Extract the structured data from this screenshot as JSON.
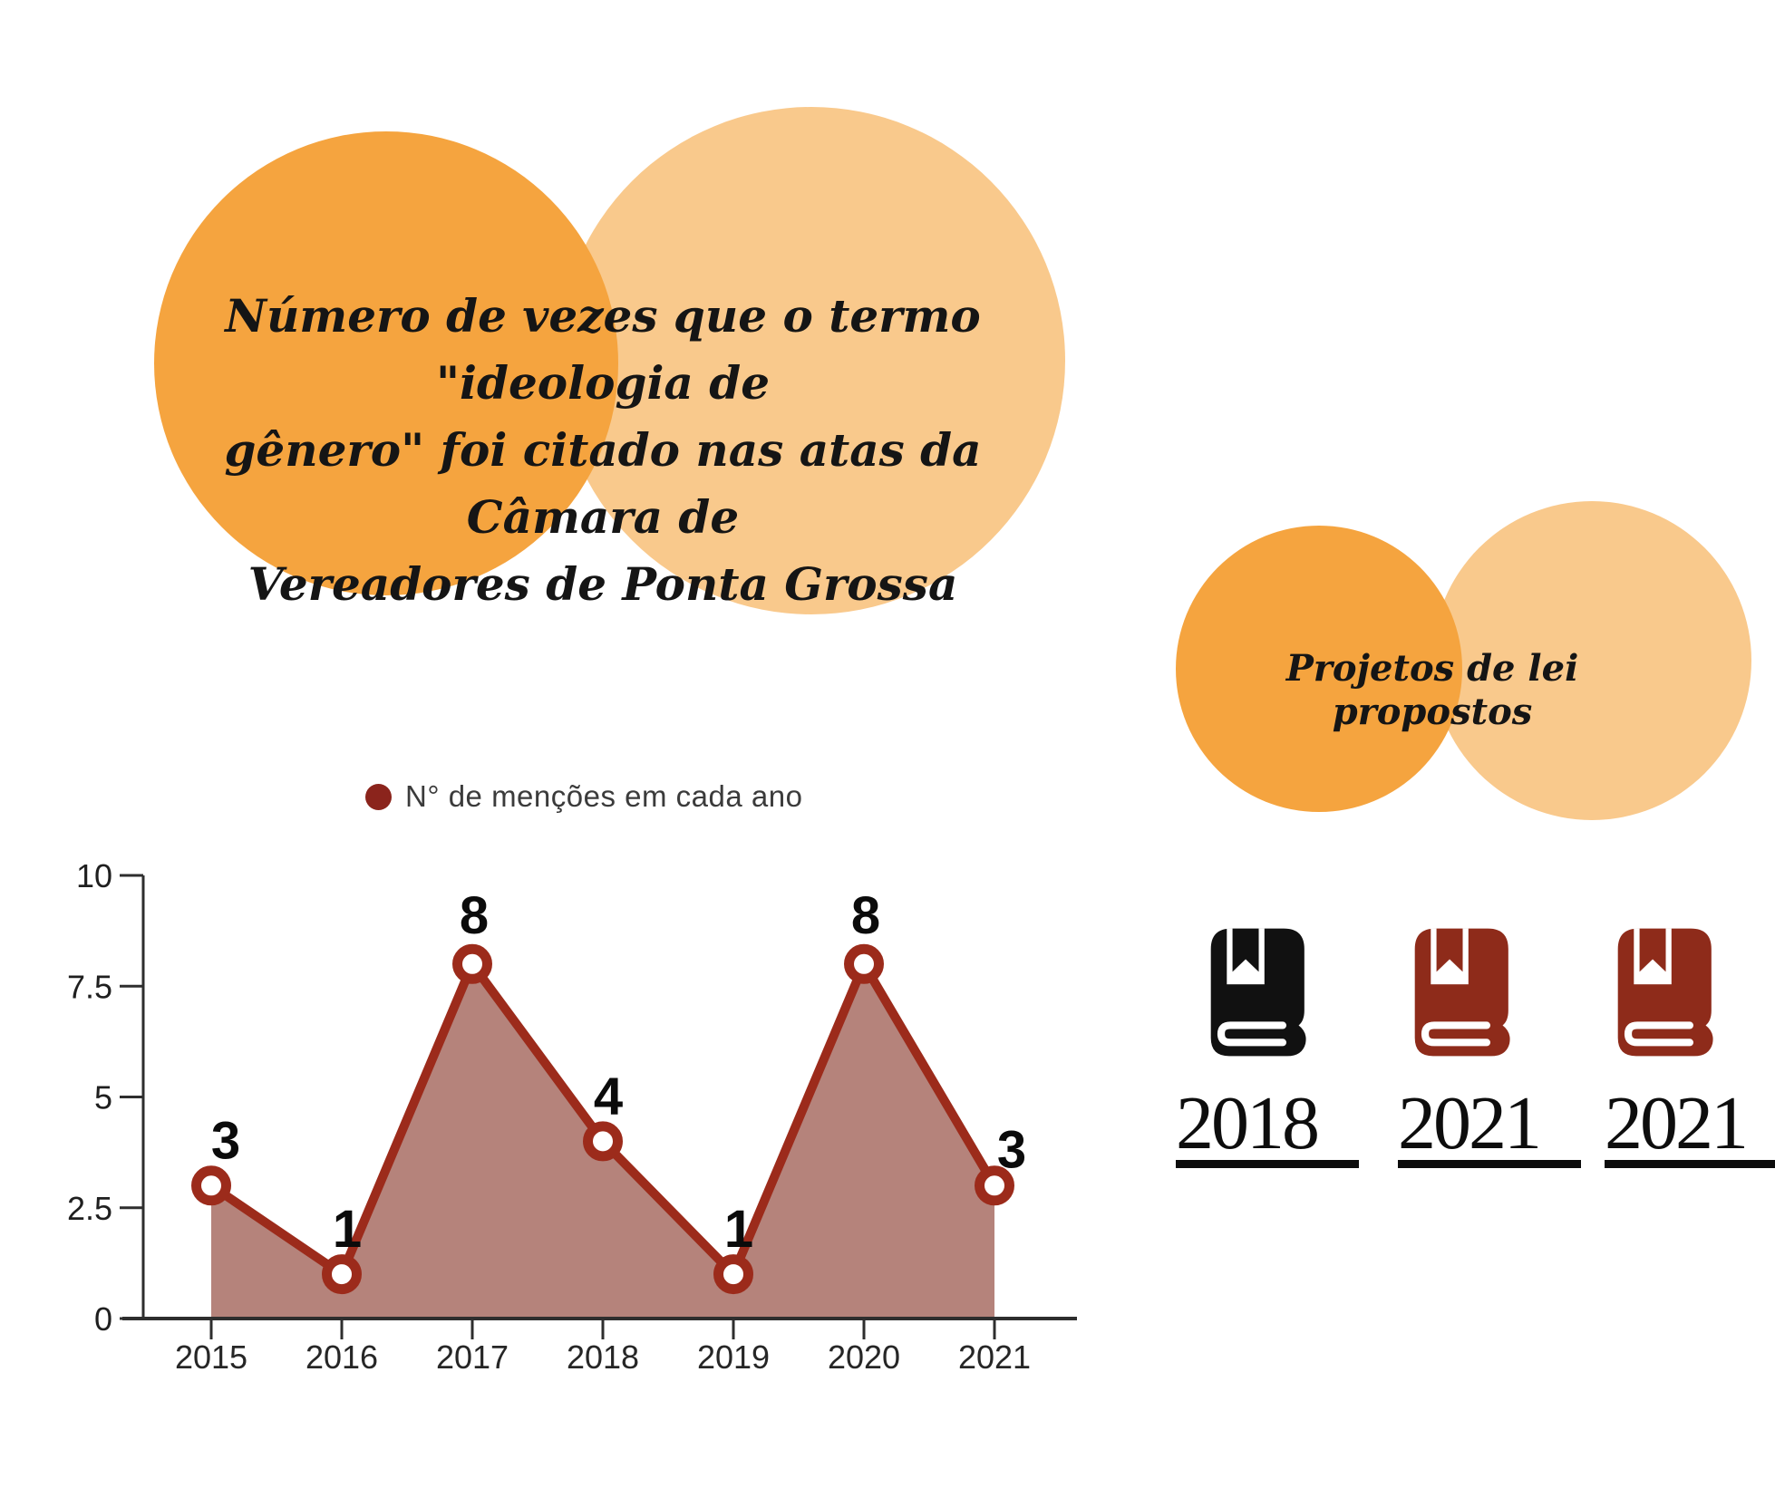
{
  "colors": {
    "orange_dark": "#F5A43F",
    "orange_light": "#F9C98C",
    "legend_dot": "#8B241C",
    "underline": "#0c0c0c"
  },
  "main_title": {
    "lines": [
      "Número de vezes que o termo \"ideologia de",
      "gênero\" foi citado nas atas da Câmara de",
      "Vereadores de Ponta Grossa"
    ]
  },
  "projects": {
    "heading": "Projetos de lei propostos",
    "items": [
      {
        "year": "2018",
        "color": "#111111"
      },
      {
        "year": "2021",
        "color": "#8E2B1A"
      },
      {
        "year": "2021",
        "color": "#8E2B1A"
      }
    ]
  },
  "chart_data": {
    "type": "line",
    "title": "",
    "series_label": "N° de menções em cada ano",
    "categories": [
      "2015",
      "2016",
      "2017",
      "2018",
      "2019",
      "2020",
      "2021"
    ],
    "values": [
      3,
      1,
      8,
      4,
      1,
      8,
      3
    ],
    "xlabel": "",
    "ylabel": "",
    "ylim": [
      0,
      10
    ],
    "ytick_values": [
      0,
      2.5,
      5,
      7.5,
      10
    ],
    "ytick_labels": [
      "0",
      "2.5",
      "5",
      "7.5",
      "10"
    ],
    "grid": false,
    "area": true,
    "legend_position": "top",
    "line_color": "#9C2B1B",
    "fill_color": "#B5837B",
    "marker": "open-circle",
    "axis_color": "#2e2e2e"
  }
}
